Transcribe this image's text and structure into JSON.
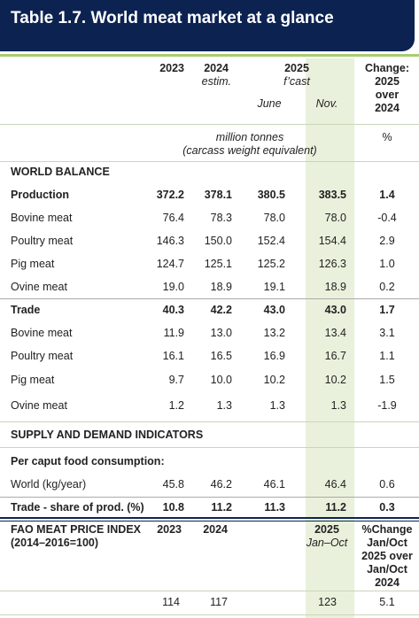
{
  "title": "Table 1.7. World meat market at a glance",
  "columns": {
    "y2023": "2023",
    "y2024": "2024",
    "y2024_note": "estim.",
    "y2025": "2025",
    "y2025_note": "f’cast",
    "june": "June",
    "nov": "Nov.",
    "change": [
      "Change:",
      "2025",
      "over",
      "2024"
    ]
  },
  "units": {
    "main": [
      "million tonnes",
      "(carcass weight equivalent)"
    ],
    "change": "%"
  },
  "world_balance": {
    "heading": "WORLD BALANCE",
    "rows": [
      {
        "label": "Production",
        "values": [
          "372.2",
          "378.1",
          "380.5",
          "383.5",
          "1.4"
        ]
      },
      {
        "label": "Bovine meat",
        "values": [
          "76.4",
          "78.3",
          "78.0",
          "78.0",
          "-0.4"
        ]
      },
      {
        "label": "Poultry meat",
        "values": [
          "146.3",
          "150.0",
          "152.4",
          "154.4",
          "2.9"
        ]
      },
      {
        "label": "Pig meat",
        "values": [
          "124.7",
          "125.1",
          "125.2",
          "126.3",
          "1.0"
        ]
      },
      {
        "label": "Ovine meat",
        "values": [
          "19.0",
          "18.9",
          "19.1",
          "18.9",
          "0.2"
        ]
      },
      {
        "label": "Trade",
        "values": [
          "40.3",
          "42.2",
          "43.0",
          "43.0",
          "1.7"
        ]
      },
      {
        "label": "Bovine meat",
        "values": [
          "11.9",
          "13.0",
          "13.2",
          "13.4",
          "3.1"
        ]
      },
      {
        "label": "Poultry meat",
        "values": [
          "16.1",
          "16.5",
          "16.9",
          "16.7",
          "1.1"
        ]
      },
      {
        "label": "Pig meat",
        "values": [
          "9.7",
          "10.0",
          "10.2",
          "10.2",
          "1.5"
        ]
      },
      {
        "label": "Ovine meat",
        "values": [
          "1.2",
          "1.3",
          "1.3",
          "1.3",
          "-1.9"
        ]
      }
    ]
  },
  "supply_demand": {
    "heading": "SUPPLY AND DEMAND INDICATORS",
    "subheading": "Per caput food consumption:",
    "rows": [
      {
        "label": "World (kg/year)",
        "values": [
          "45.8",
          "46.2",
          "46.1",
          "46.4",
          "0.6"
        ]
      },
      {
        "label": "Trade - share of prod. (%)",
        "values": [
          "10.8",
          "11.2",
          "11.3",
          "11.2",
          "0.3"
        ]
      }
    ]
  },
  "price_index": {
    "label": [
      "FAO MEAT PRICE INDEX",
      "(2014–2016=100)"
    ],
    "y2023": "2023",
    "y2024": "2024",
    "y2025": "2025",
    "y2025_note": "Jan–Oct",
    "change": [
      "%Change",
      "Jan/Oct",
      "2025 over",
      "Jan/Oct",
      "2024"
    ],
    "values": [
      "114",
      "117",
      "123",
      "5.1"
    ]
  }
}
